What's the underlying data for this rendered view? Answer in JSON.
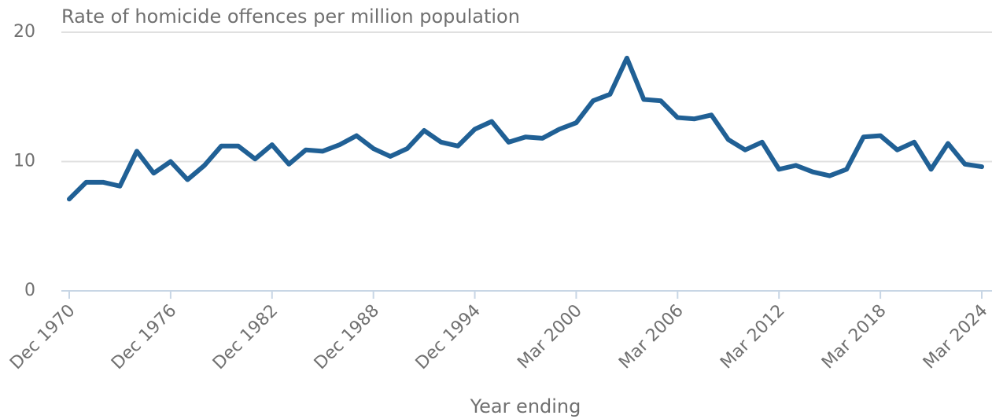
{
  "chart_data": {
    "type": "line",
    "title": "Rate of homicide offences per million population",
    "x_label": "Year ending",
    "categories": [
      "Dec 1970",
      null,
      null,
      null,
      null,
      null,
      "Dec 1976",
      null,
      null,
      null,
      null,
      null,
      "Dec 1982",
      null,
      null,
      null,
      null,
      null,
      "Dec 1988",
      null,
      null,
      null,
      null,
      null,
      "Dec 1994",
      null,
      null,
      null,
      null,
      null,
      "Mar 2000",
      null,
      null,
      null,
      null,
      null,
      "Mar 2006",
      null,
      null,
      null,
      null,
      null,
      "Mar 2012",
      null,
      null,
      null,
      null,
      null,
      "Mar 2018",
      null,
      null,
      null,
      null,
      null,
      "Mar 2024"
    ],
    "values": [
      7.1,
      8.4,
      8.4,
      8.1,
      10.8,
      9.1,
      10.0,
      8.6,
      9.7,
      11.2,
      11.2,
      10.2,
      11.3,
      9.8,
      10.9,
      10.8,
      11.3,
      12.0,
      11.0,
      10.4,
      11.0,
      12.4,
      11.5,
      11.2,
      12.5,
      13.1,
      11.5,
      11.9,
      11.8,
      12.5,
      13.0,
      14.7,
      15.2,
      18.0,
      14.8,
      14.7,
      13.4,
      13.3,
      13.6,
      11.7,
      10.9,
      11.5,
      9.4,
      9.7,
      9.2,
      8.9,
      9.4,
      11.9,
      12.0,
      10.9,
      11.5,
      9.4,
      11.4,
      9.8,
      9.6
    ],
    "color": "#206095",
    "ylim": [
      0,
      20
    ],
    "yticks": [
      0,
      10,
      20
    ],
    "grid": true
  }
}
